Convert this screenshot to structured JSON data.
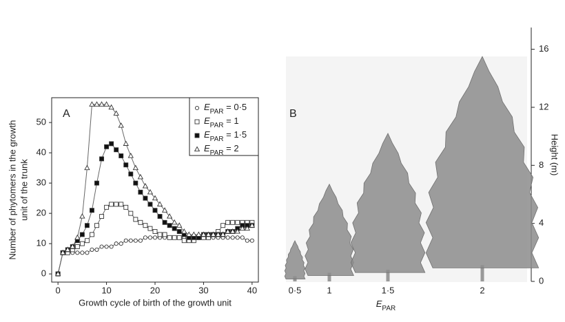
{
  "chart_data": [
    {
      "type": "line",
      "panel": "A",
      "xlabel": "Growth cycle of birth of the growth unit",
      "ylabel": [
        "Number of phytomers in the growth",
        "unit of the trunk"
      ],
      "x": [
        0,
        1,
        2,
        3,
        4,
        5,
        6,
        7,
        8,
        9,
        10,
        11,
        12,
        13,
        14,
        15,
        16,
        17,
        18,
        19,
        20,
        21,
        22,
        23,
        24,
        25,
        26,
        27,
        28,
        29,
        30,
        31,
        32,
        33,
        34,
        35,
        36,
        37,
        38,
        39,
        40
      ],
      "xlim": [
        -1.3,
        41.3
      ],
      "xticks": [
        0,
        10,
        20,
        30,
        40
      ],
      "ylim": [
        -2.7,
        58.2
      ],
      "yticks": [
        0,
        10,
        20,
        30,
        40,
        50
      ],
      "legend": "upper right",
      "series": [
        {
          "name": "EPAR = 0·5",
          "marker": "circle-open",
          "color": "#333333",
          "values": [
            0,
            7,
            7,
            7,
            7,
            7,
            7,
            8,
            8,
            9,
            9,
            9,
            10,
            10,
            11,
            11,
            11,
            11,
            12,
            12,
            12,
            12,
            12,
            12,
            12,
            12,
            12,
            12,
            12,
            12,
            12,
            12,
            12,
            12,
            12,
            12,
            12,
            12,
            12,
            11,
            11
          ]
        },
        {
          "name": "EPAR = 1",
          "marker": "square-open",
          "color": "#333333",
          "values": [
            0,
            7,
            7,
            8,
            9,
            10,
            11,
            13,
            16,
            19,
            22,
            23,
            23,
            23,
            22,
            20,
            18,
            17,
            16,
            15,
            14,
            13,
            13,
            12,
            12,
            12,
            11,
            11,
            11,
            12,
            12,
            12,
            13,
            14,
            16,
            17,
            17,
            17,
            17,
            17,
            17
          ]
        },
        {
          "name": "EPAR = 1·5",
          "marker": "square-filled",
          "color": "#111111",
          "values": [
            0,
            7,
            8,
            9,
            11,
            13,
            16,
            21,
            30,
            38,
            42,
            43,
            41,
            39,
            36,
            33,
            30,
            27,
            25,
            23,
            21,
            19,
            17,
            16,
            15,
            14,
            13,
            12,
            12,
            12,
            13,
            13,
            13,
            13,
            13,
            14,
            14,
            15,
            16,
            16,
            16
          ]
        },
        {
          "name": "EPAR = 2",
          "marker": "triangle-open",
          "color": "#333333",
          "values": [
            0,
            7,
            8,
            9,
            12,
            19,
            35,
            56,
            56,
            56,
            56,
            55,
            53,
            49,
            43,
            39,
            35,
            32,
            29,
            27,
            25,
            23,
            21,
            19,
            17,
            16,
            14,
            13,
            13,
            13,
            13,
            13,
            13,
            13,
            13,
            14,
            14,
            14,
            15,
            15,
            16
          ]
        }
      ]
    },
    {
      "type": "bar",
      "panel": "B",
      "xlabel": "EPAR",
      "ylabel": "Height (m)",
      "categories": [
        "0·5",
        "1",
        "1·5",
        "2"
      ],
      "values": [
        2.8,
        6.7,
        10.2,
        15.5
      ],
      "color": "#8c8c8c",
      "ylim": [
        0,
        17.5
      ],
      "yticks": [
        0,
        4,
        8,
        12,
        16
      ]
    }
  ]
}
